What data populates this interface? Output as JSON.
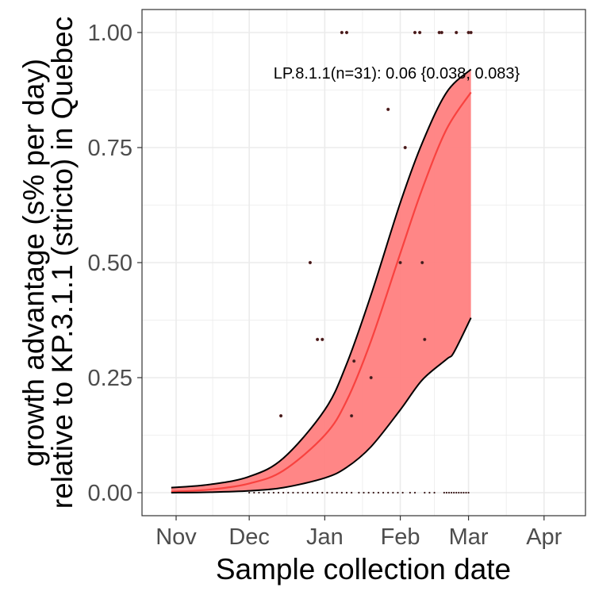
{
  "chart_data": {
    "type": "line",
    "title": "",
    "xlabel": "Sample collection date",
    "ylabel_lines": [
      "growth advantage (s% per day)",
      "relative to KP.3.1.1 (stricto) in Quebec"
    ],
    "annotation": "LP.8.1.1(n=31): 0.06 {0.038, 0.083}",
    "xlim": [
      "2024-10-18",
      "2025-04-18"
    ],
    "ylim": [
      -0.05,
      1.05
    ],
    "x_ticks": [
      {
        "date": "2024-11-01",
        "label": "Nov"
      },
      {
        "date": "2024-12-01",
        "label": "Dec"
      },
      {
        "date": "2025-01-01",
        "label": "Jan"
      },
      {
        "date": "2025-02-01",
        "label": "Feb"
      },
      {
        "date": "2025-03-01",
        "label": "Mar"
      },
      {
        "date": "2025-04-01",
        "label": "Apr"
      }
    ],
    "y_ticks": [
      {
        "value": 0,
        "label": "0.00"
      },
      {
        "value": 0.25,
        "label": "0.25"
      },
      {
        "value": 0.5,
        "label": "0.50"
      },
      {
        "value": 0.75,
        "label": "0.75"
      },
      {
        "value": 1,
        "label": "1.00"
      }
    ],
    "grid": true,
    "colors": {
      "fit": "#f8423f",
      "ribbon": "#ff7f7f",
      "bound": "#000000",
      "points": "#3a1a1a",
      "grid": "#ebebeb",
      "panel_border": "#333333"
    },
    "series": [
      {
        "name": "fit",
        "points": [
          [
            "2024-10-30",
            0.002
          ],
          [
            "2024-11-15",
            0.007
          ],
          [
            "2024-12-01",
            0.02
          ],
          [
            "2024-12-15",
            0.048
          ],
          [
            "2025-01-01",
            0.125
          ],
          [
            "2025-01-10",
            0.2
          ],
          [
            "2025-01-20",
            0.33
          ],
          [
            "2025-02-01",
            0.52
          ],
          [
            "2025-02-10",
            0.66
          ],
          [
            "2025-02-20",
            0.79
          ],
          [
            "2025-03-02",
            0.87
          ]
        ]
      },
      {
        "name": "upper",
        "points": [
          [
            "2024-10-30",
            0.011
          ],
          [
            "2024-11-15",
            0.018
          ],
          [
            "2024-12-01",
            0.035
          ],
          [
            "2024-12-15",
            0.075
          ],
          [
            "2025-01-01",
            0.18
          ],
          [
            "2025-01-10",
            0.28
          ],
          [
            "2025-01-20",
            0.43
          ],
          [
            "2025-02-01",
            0.63
          ],
          [
            "2025-02-10",
            0.76
          ],
          [
            "2025-02-20",
            0.87
          ],
          [
            "2025-03-02",
            0.92
          ]
        ]
      },
      {
        "name": "lower",
        "points": [
          [
            "2024-10-30",
            0.0
          ],
          [
            "2024-11-15",
            0.001
          ],
          [
            "2024-12-01",
            0.004
          ],
          [
            "2024-12-15",
            0.011
          ],
          [
            "2025-01-01",
            0.032
          ],
          [
            "2025-01-10",
            0.055
          ],
          [
            "2025-01-20",
            0.1
          ],
          [
            "2025-02-01",
            0.18
          ],
          [
            "2025-02-10",
            0.245
          ],
          [
            "2025-02-20",
            0.29
          ],
          [
            "2025-02-23",
            0.305
          ],
          [
            "2025-03-02",
            0.38
          ]
        ]
      }
    ],
    "observed_points": [
      {
        "date": "2024-12-14",
        "value": 0.167
      },
      {
        "date": "2024-12-26",
        "value": 0.5
      },
      {
        "date": "2024-12-29",
        "value": 0.333
      },
      {
        "date": "2024-12-31",
        "value": 0.333
      },
      {
        "date": "2025-01-08",
        "value": 1.0
      },
      {
        "date": "2025-01-10",
        "value": 1.0
      },
      {
        "date": "2025-01-12",
        "value": 0.167
      },
      {
        "date": "2025-01-13",
        "value": 0.286
      },
      {
        "date": "2025-01-20",
        "value": 0.25
      },
      {
        "date": "2025-01-27",
        "value": 0.833
      },
      {
        "date": "2025-02-01",
        "value": 0.5
      },
      {
        "date": "2025-02-03",
        "value": 0.75
      },
      {
        "date": "2025-02-07",
        "value": 1.0
      },
      {
        "date": "2025-02-09",
        "value": 1.0
      },
      {
        "date": "2025-02-10",
        "value": 0.5
      },
      {
        "date": "2025-02-11",
        "value": 0.333
      },
      {
        "date": "2025-02-17",
        "value": 1.0
      },
      {
        "date": "2025-02-18",
        "value": 1.0
      },
      {
        "date": "2025-02-24",
        "value": 1.0
      },
      {
        "date": "2025-03-01",
        "value": 1.0
      },
      {
        "date": "2025-03-02",
        "value": 1.0
      }
    ],
    "zero_points": [
      "2024-12-01",
      "2024-12-03",
      "2024-12-05",
      "2024-12-07",
      "2024-12-09",
      "2024-12-11",
      "2024-12-13",
      "2024-12-15",
      "2024-12-17",
      "2024-12-19",
      "2024-12-21",
      "2024-12-23",
      "2024-12-25",
      "2024-12-27",
      "2024-12-29",
      "2024-12-31",
      "2025-01-02",
      "2025-01-04",
      "2025-01-06",
      "2025-01-08",
      "2025-01-10",
      "2025-01-12",
      "2025-01-15",
      "2025-01-17",
      "2025-01-19",
      "2025-01-21",
      "2025-01-23",
      "2025-01-25",
      "2025-01-27",
      "2025-01-29",
      "2025-01-31",
      "2025-02-02",
      "2025-02-05",
      "2025-02-07",
      "2025-02-11",
      "2025-02-13",
      "2025-02-15",
      "2025-02-19",
      "2025-02-20",
      "2025-02-21",
      "2025-02-22",
      "2025-02-23",
      "2025-02-24",
      "2025-02-25",
      "2025-02-26",
      "2025-02-27",
      "2025-02-28",
      "2025-03-01"
    ]
  }
}
